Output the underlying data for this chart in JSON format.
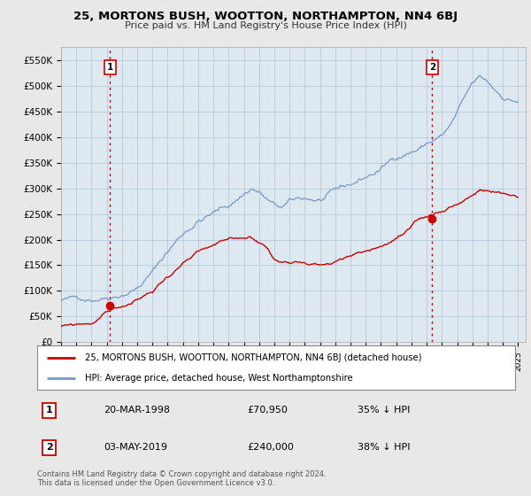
{
  "title": "25, MORTONS BUSH, WOOTTON, NORTHAMPTON, NN4 6BJ",
  "subtitle": "Price paid vs. HM Land Registry's House Price Index (HPI)",
  "ylabel_ticks": [
    "£0",
    "£50K",
    "£100K",
    "£150K",
    "£200K",
    "£250K",
    "£300K",
    "£350K",
    "£400K",
    "£450K",
    "£500K",
    "£550K"
  ],
  "ytick_values": [
    0,
    50000,
    100000,
    150000,
    200000,
    250000,
    300000,
    350000,
    400000,
    450000,
    500000,
    550000
  ],
  "ylim": [
    0,
    575000
  ],
  "background_color": "#e8e8e8",
  "plot_bg_color": "#dde8f0",
  "grid_color": "#b0c4d8",
  "hpi_color": "#7799cc",
  "price_color": "#cc0000",
  "sale1_year": 1998.21,
  "sale1_price_val": 70950,
  "sale2_year": 2019.37,
  "sale2_price_val": 240000,
  "marker1_label": "1",
  "marker2_label": "2",
  "sale1_date": "20-MAR-1998",
  "sale1_price": "£70,950",
  "sale1_hpi": "35% ↓ HPI",
  "sale2_date": "03-MAY-2019",
  "sale2_price": "£240,000",
  "sale2_hpi": "38% ↓ HPI",
  "legend_line1": "25, MORTONS BUSH, WOOTTON, NORTHAMPTON, NN4 6BJ (detached house)",
  "legend_line2": "HPI: Average price, detached house, West Northamptonshire",
  "footer": "Contains HM Land Registry data © Crown copyright and database right 2024.\nThis data is licensed under the Open Government Licence v3.0.",
  "vline_color": "#cc0000",
  "marker_box_color": "#cc0000",
  "x_start_year": 1995,
  "x_end_year": 2025
}
